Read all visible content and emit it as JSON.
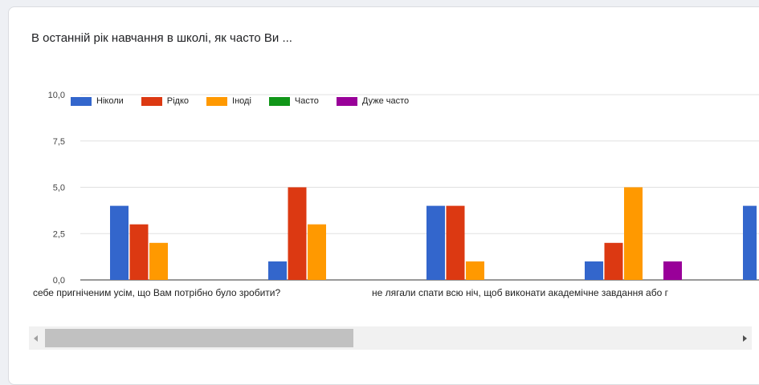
{
  "title": "В останній рік навчання в школі, як часто Ви ...",
  "icons": {
    "scroll_left": "triangle-left-icon",
    "scroll_right": "triangle-right-icon"
  },
  "chart_data": {
    "type": "bar",
    "title": "",
    "xlabel": "",
    "ylabel": "",
    "ylim": [
      0,
      10
    ],
    "yticks": [
      "0,0",
      "2,5",
      "5,0",
      "7,5",
      "10,0"
    ],
    "grid": true,
    "legend_position": "top-left",
    "categories": [
      "себе пригніченим усім, що Вам потрібно було зробити?",
      "",
      "не лягали спати всю ніч, щоб виконати академічне завдання або г",
      "",
      ""
    ],
    "series": [
      {
        "name": "Ніколи",
        "color": "#3366cc",
        "values": [
          4,
          1,
          4,
          1,
          4
        ]
      },
      {
        "name": "Рідко",
        "color": "#dc3912",
        "values": [
          3,
          5,
          4,
          2,
          null
        ]
      },
      {
        "name": "Іноді",
        "color": "#ff9900",
        "values": [
          2,
          3,
          1,
          5,
          null
        ]
      },
      {
        "name": "Часто",
        "color": "#109618",
        "values": [
          0,
          0,
          0,
          0,
          null
        ]
      },
      {
        "name": "Дуже часто",
        "color": "#990099",
        "values": [
          0,
          0,
          0,
          1,
          null
        ]
      }
    ]
  }
}
